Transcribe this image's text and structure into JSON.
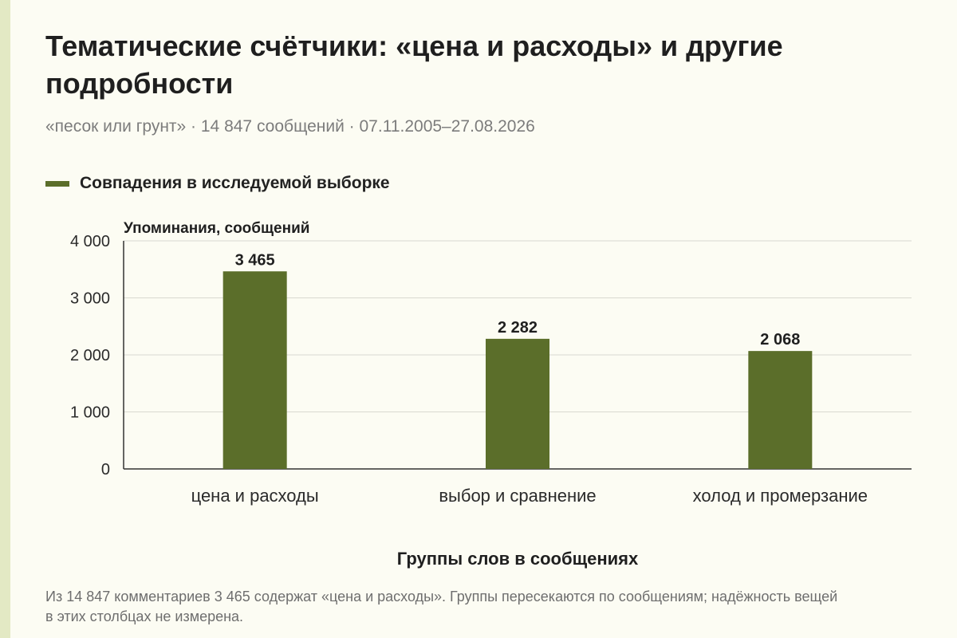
{
  "header": {
    "title": "Тематические счётчики: «цена и расходы» и другие подробности",
    "subtitle": "«песок или грунт» · 14 847 сообщений · 07.11.2005–27.08.2026"
  },
  "legend": {
    "label": "Совпадения в исследуемой выборке",
    "color": "#5b6e2a"
  },
  "chart_data": {
    "type": "bar",
    "categories": [
      "цена и расходы",
      "выбор и сравнение",
      "холод и промерзание"
    ],
    "series": [
      {
        "name": "Совпадения в исследуемой выборке",
        "values": [
          3465,
          2282,
          2068
        ],
        "value_labels": [
          "3 465",
          "2 282",
          "2 068"
        ]
      }
    ],
    "ylabel": "Упоминания, сообщений",
    "xlabel": "Группы слов в сообщениях",
    "ylim": [
      0,
      4000
    ],
    "yticks": [
      0,
      1000,
      2000,
      3000,
      4000
    ],
    "ytick_labels": [
      "0",
      "1 000",
      "2 000",
      "3 000",
      "4 000"
    ],
    "grid": true,
    "legend_position": "top-left",
    "bar_color": "#5b6e2a"
  },
  "footnote": "Из 14 847 комментариев 3 465 содержат «цена и расходы». Группы пересекаются по сообщениям; надёжность вещей в этих столбцах не измерена."
}
